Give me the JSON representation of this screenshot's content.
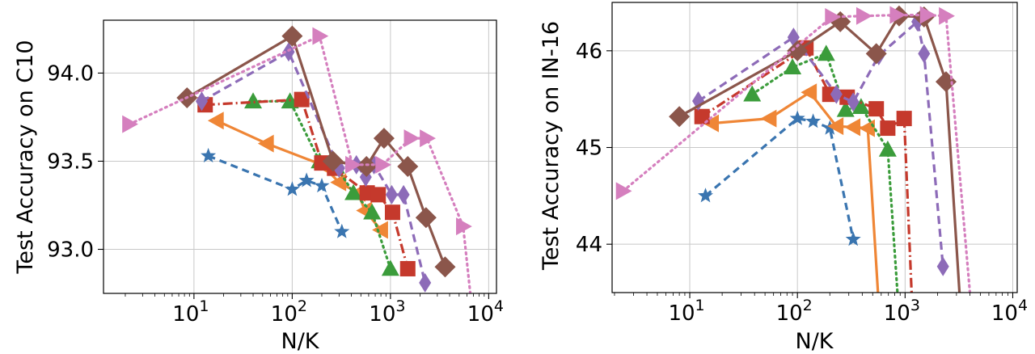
{
  "chart_data": [
    {
      "type": "line",
      "xscale": "log",
      "xlabel": "N/K",
      "ylabel": "Test Accuracy on C10",
      "xlim": [
        1.2,
        12000
      ],
      "ylim": [
        92.75,
        94.3
      ],
      "xticks": [
        {
          "value": 10,
          "base": "10",
          "exp": "1"
        },
        {
          "value": 100,
          "base": "10",
          "exp": "2"
        },
        {
          "value": 1000,
          "base": "10",
          "exp": "3"
        },
        {
          "value": 10000,
          "base": "10",
          "exp": "4"
        }
      ],
      "yticks": [
        {
          "value": 93.0,
          "label": "93.0"
        },
        {
          "value": 93.5,
          "label": "93.5"
        },
        {
          "value": 94.0,
          "label": "94.0"
        }
      ],
      "grid": true,
      "series": [
        {
          "color": "#3a75b0",
          "marker": "star",
          "dash": "9,6",
          "x": [
            14,
            100,
            140,
            200,
            320
          ],
          "y": [
            93.53,
            93.34,
            93.39,
            93.36,
            93.1
          ]
        },
        {
          "color": "#ef8636",
          "marker": "tri-left",
          "dash": "",
          "x": [
            17,
            55,
            200,
            300,
            470,
            550,
            800
          ],
          "y": [
            93.73,
            93.6,
            93.48,
            93.38,
            93.32,
            93.22,
            93.11
          ]
        },
        {
          "color": "#3b9c3b",
          "marker": "tri-up",
          "dash": "2,5",
          "x": [
            40,
            95,
            190,
            280,
            420,
            650,
            1000
          ],
          "y": [
            93.84,
            93.84,
            93.5,
            93.47,
            93.32,
            93.21,
            92.89
          ]
        },
        {
          "color": "#c5392c",
          "marker": "square",
          "dash": "12,4,2,4",
          "x": [
            13,
            125,
            200,
            270,
            580,
            750,
            1050,
            1500
          ],
          "y": [
            93.82,
            93.85,
            93.49,
            93.46,
            93.32,
            93.31,
            93.21,
            92.89
          ]
        },
        {
          "color": "#8d6bb8",
          "marker": "diamond-thin",
          "dash": "10,6",
          "x": [
            12,
            92,
            300,
            450,
            560,
            680,
            1030,
            1360,
            2250
          ],
          "y": [
            93.84,
            94.12,
            93.46,
            93.48,
            93.41,
            93.48,
            93.31,
            93.31,
            92.81
          ]
        },
        {
          "color": "#8b564b",
          "marker": "diamond",
          "dash": "",
          "x": [
            8.5,
            100,
            260,
            570,
            860,
            1500,
            2300,
            3600
          ],
          "y": [
            93.86,
            94.21,
            93.5,
            93.47,
            93.63,
            93.47,
            93.18,
            92.9
          ]
        },
        {
          "color": "#d57fbe",
          "marker": "tri-right",
          "dash": "2,5",
          "x": [
            2.2,
            190,
            410,
            830,
            1620,
            2350,
            5500,
            6500
          ],
          "y": [
            93.71,
            94.21,
            93.48,
            93.48,
            93.63,
            93.63,
            93.13,
            92.75
          ]
        }
      ]
    },
    {
      "type": "line",
      "xscale": "log",
      "xlabel": "N/K",
      "ylabel": "Test Accuracy on IN-16",
      "xlim": [
        1.9,
        11000
      ],
      "ylim": [
        43.5,
        46.5
      ],
      "xticks": [
        {
          "value": 10,
          "base": "10",
          "exp": "1"
        },
        {
          "value": 100,
          "base": "10",
          "exp": "2"
        },
        {
          "value": 1000,
          "base": "10",
          "exp": "3"
        },
        {
          "value": 10000,
          "base": "10",
          "exp": "4"
        }
      ],
      "yticks": [
        {
          "value": 44,
          "label": "44"
        },
        {
          "value": 45,
          "label": "45"
        },
        {
          "value": 46,
          "label": "46"
        }
      ],
      "grid": true,
      "series": [
        {
          "color": "#3a75b0",
          "marker": "star",
          "dash": "9,6",
          "x": [
            14,
            100,
            140,
            200,
            330
          ],
          "y": [
            44.5,
            45.3,
            45.27,
            45.2,
            44.05
          ]
        },
        {
          "color": "#ef8636",
          "marker": "tri-left",
          "dash": "",
          "x": [
            16,
            55,
            130,
            230,
            330,
            450,
            560
          ],
          "y": [
            45.25,
            45.3,
            45.57,
            45.22,
            45.21,
            45.2,
            43.5
          ]
        },
        {
          "color": "#3b9c3b",
          "marker": "tri-up",
          "dash": "2,5",
          "x": [
            38,
            90,
            185,
            280,
            390,
            690,
            850
          ],
          "y": [
            45.55,
            45.83,
            45.97,
            45.39,
            45.42,
            44.98,
            43.5
          ]
        },
        {
          "color": "#c5392c",
          "marker": "square",
          "dash": "12,4,2,4",
          "x": [
            13,
            120,
            200,
            290,
            540,
            690,
            980,
            1150
          ],
          "y": [
            45.32,
            46.03,
            45.55,
            45.52,
            45.4,
            45.2,
            45.3,
            43.5
          ]
        },
        {
          "color": "#8d6bb8",
          "marker": "diamond-thin",
          "dash": "10,6",
          "x": [
            12,
            92,
            230,
            330,
            570,
            1300,
            1500,
            2250
          ],
          "y": [
            45.48,
            46.14,
            45.55,
            45.47,
            45.95,
            46.3,
            45.97,
            43.77
          ]
        },
        {
          "color": "#8b564b",
          "marker": "diamond",
          "dash": "",
          "x": [
            8,
            100,
            250,
            540,
            880,
            1500,
            2400,
            3200
          ],
          "y": [
            45.32,
            46.0,
            46.3,
            45.97,
            46.36,
            46.35,
            45.68,
            43.5
          ]
        },
        {
          "color": "#d57fbe",
          "marker": "tri-right",
          "dash": "2,5",
          "x": [
            2.4,
            210,
            410,
            840,
            1600,
            2400,
            4000
          ],
          "y": [
            44.55,
            46.35,
            46.36,
            46.37,
            46.37,
            46.36,
            43.5
          ]
        }
      ]
    }
  ]
}
